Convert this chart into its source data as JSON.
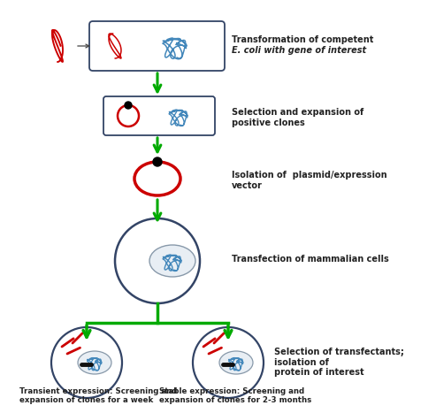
{
  "background_color": "#ffffff",
  "arrow_color": "#00aa00",
  "red_color": "#cc0000",
  "dark_blue": "#334466",
  "blue_dna": "#4488bb",
  "text_color": "#222222",
  "labels": {
    "step1_line1": "Transformation of competent",
    "step1_line2": "E. coli with gene of interest",
    "step2": "Selection and expansion of\npositive clones",
    "step3": "Isolation of  plasmid/expression\nvector",
    "step4": "Transfection of mammalian cells",
    "step5": "Selection of transfectants;\nisolation of\nprotein of interest",
    "bottom_left_line1": "Transient expression: Screening and",
    "bottom_left_line2": "expansion of clones for a week",
    "bottom_right_line1": "Stable expression: Screening and",
    "bottom_right_line2": "expansion of clones for 2-3 months"
  }
}
